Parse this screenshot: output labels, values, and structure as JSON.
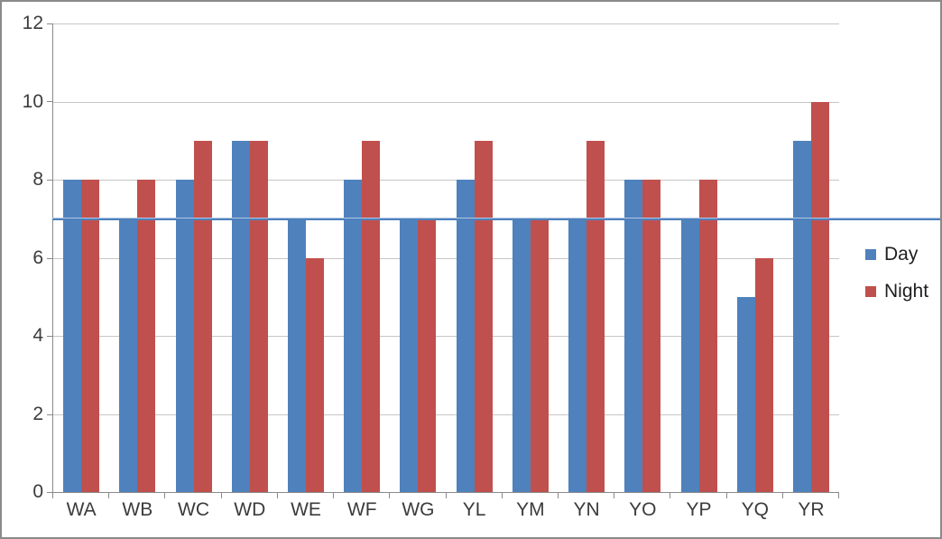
{
  "chart_data": {
    "type": "bar",
    "categories": [
      "WA",
      "WB",
      "WC",
      "WD",
      "WE",
      "WF",
      "WG",
      "YL",
      "YM",
      "YN",
      "YO",
      "YP",
      "YQ",
      "YR"
    ],
    "series": [
      {
        "name": "Day",
        "color": "#4f81bd",
        "values": [
          8,
          7,
          8,
          9,
          7,
          8,
          7,
          8,
          7,
          7,
          8,
          7,
          5,
          9
        ]
      },
      {
        "name": "Night",
        "color": "#c0504d",
        "values": [
          8,
          8,
          9,
          9,
          6,
          9,
          7,
          9,
          7,
          9,
          8,
          8,
          6,
          10
        ]
      }
    ],
    "title": "",
    "xlabel": "",
    "ylabel": "",
    "ylim": [
      0,
      12
    ],
    "yticks": [
      0,
      2,
      4,
      6,
      8,
      10,
      12
    ],
    "grid": true,
    "legend_position": "right-middle",
    "reference_line": {
      "value": 7,
      "color": "#4d80bd",
      "edge_color": "#b2c7e2"
    }
  },
  "style": {
    "bar_blue": "#4f81bd",
    "bar_red": "#c0504d",
    "gridline_color": "#c6c6c6",
    "axis_color": "#8a8a8a",
    "frame_border_color": "#8a8a8a",
    "text_color": "#3b3b3b",
    "background": "#ffffff"
  }
}
